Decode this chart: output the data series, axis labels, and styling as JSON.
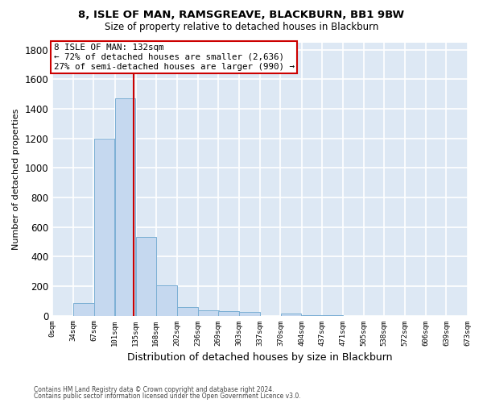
{
  "title1": "8, ISLE OF MAN, RAMSGREAVE, BLACKBURN, BB1 9BW",
  "title2": "Size of property relative to detached houses in Blackburn",
  "xlabel": "Distribution of detached houses by size in Blackburn",
  "ylabel": "Number of detached properties",
  "footer1": "Contains HM Land Registry data © Crown copyright and database right 2024.",
  "footer2": "Contains public sector information licensed under the Open Government Licence v3.0.",
  "bar_color": "#c5d8ef",
  "bar_edge_color": "#7bafd4",
  "red_line_x": 132,
  "annotation_line1": "8 ISLE OF MAN: 132sqm",
  "annotation_line2": "← 72% of detached houses are smaller (2,636)",
  "annotation_line3": "27% of semi-detached houses are larger (990) →",
  "bins": [
    0,
    34,
    67,
    101,
    135,
    168,
    202,
    236,
    269,
    303,
    337,
    370,
    404,
    437,
    471,
    505,
    538,
    572,
    606,
    639,
    673
  ],
  "counts": [
    0,
    85,
    1200,
    1470,
    530,
    205,
    60,
    35,
    30,
    25,
    0,
    15,
    5,
    5,
    0,
    0,
    0,
    0,
    0,
    0
  ],
  "ylim": [
    0,
    1850
  ],
  "yticks": [
    0,
    200,
    400,
    600,
    800,
    1000,
    1200,
    1400,
    1600,
    1800
  ],
  "bg_color": "#dde8f4",
  "grid_color": "#c8d8e8"
}
